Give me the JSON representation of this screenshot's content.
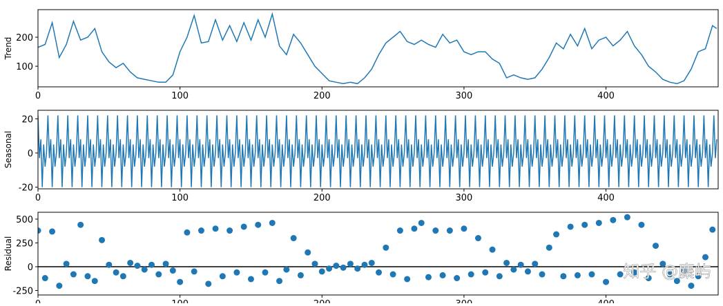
{
  "chart_data": [
    {
      "type": "line",
      "ylabel": "Trend",
      "color": "#1f77b4",
      "x": [
        0,
        5,
        10,
        15,
        20,
        25,
        30,
        35,
        40,
        45,
        50,
        55,
        60,
        65,
        70,
        75,
        80,
        85,
        90,
        95,
        100,
        105,
        110,
        115,
        120,
        125,
        130,
        135,
        140,
        145,
        150,
        155,
        160,
        165,
        170,
        175,
        180,
        185,
        190,
        195,
        200,
        205,
        210,
        215,
        220,
        225,
        230,
        235,
        240,
        245,
        250,
        255,
        260,
        265,
        270,
        275,
        280,
        285,
        290,
        295,
        300,
        305,
        310,
        315,
        320,
        325,
        330,
        335,
        340,
        345,
        350,
        355,
        360,
        365,
        370,
        375,
        380,
        385,
        390,
        395,
        400,
        405,
        410,
        415,
        420,
        425,
        430,
        435,
        440,
        445,
        450,
        455,
        460,
        465,
        470,
        475,
        478
      ],
      "values": [
        165,
        175,
        250,
        130,
        175,
        255,
        190,
        200,
        230,
        150,
        115,
        95,
        110,
        80,
        60,
        55,
        50,
        45,
        45,
        70,
        150,
        200,
        275,
        180,
        185,
        260,
        190,
        240,
        185,
        250,
        190,
        260,
        200,
        280,
        170,
        140,
        210,
        180,
        140,
        100,
        75,
        50,
        45,
        40,
        45,
        40,
        60,
        90,
        140,
        180,
        200,
        220,
        185,
        175,
        190,
        175,
        165,
        210,
        180,
        190,
        150,
        140,
        150,
        150,
        125,
        110,
        60,
        70,
        60,
        55,
        60,
        90,
        130,
        180,
        160,
        210,
        170,
        230,
        160,
        190,
        200,
        170,
        190,
        220,
        170,
        140,
        100,
        80,
        55,
        45,
        40,
        50,
        90,
        150,
        160,
        240,
        230
      ],
      "xlim": [
        0,
        479
      ],
      "xticks": [
        0,
        100,
        200,
        300,
        400
      ],
      "ylim": [
        29,
        295
      ],
      "yticks": [
        100,
        200
      ]
    },
    {
      "type": "line",
      "ylabel": "Seasonal",
      "color": "#1f77b4",
      "values": [
        22,
        -3,
        8,
        -20,
        5,
        -8,
        0,
        22,
        -3,
        8,
        -20,
        5,
        -8,
        0,
        22,
        -3,
        8,
        -20,
        5,
        -8,
        0,
        22,
        -3,
        8,
        -20,
        5,
        -8,
        0,
        22,
        -3,
        8,
        -20,
        5,
        -8,
        0,
        22,
        -3,
        8,
        -20,
        5,
        -8,
        0,
        22,
        -3,
        8,
        -20,
        5,
        -8,
        0,
        22,
        -3,
        8,
        -20,
        5,
        -8,
        0,
        22,
        -3,
        8,
        -20,
        5,
        -8,
        0,
        22,
        -3,
        8,
        -20,
        5,
        -8,
        0,
        22,
        -3,
        8,
        -20,
        5,
        -8,
        0,
        22,
        -3,
        8,
        -20,
        5,
        -8,
        0,
        22,
        -3,
        8,
        -20,
        5,
        -8,
        0,
        22,
        -3,
        8,
        -20,
        5,
        -8,
        0,
        22,
        -3,
        8,
        -20,
        5,
        -8,
        0,
        22,
        -3,
        8,
        -20,
        5,
        -8,
        0,
        22,
        -3,
        8,
        -20,
        5,
        -8,
        0,
        22,
        -3,
        8,
        -20,
        5,
        -8,
        0,
        22,
        -3,
        8,
        -20,
        5,
        -8,
        0,
        22,
        -3,
        8,
        -20,
        5,
        -8,
        0,
        22,
        -3,
        8,
        -20,
        5,
        -8,
        0,
        22,
        -3,
        8,
        -20,
        5,
        -8,
        0,
        22,
        -3,
        8,
        -20,
        5,
        -8,
        0,
        22,
        -3,
        8,
        -20,
        5,
        -8,
        0,
        22,
        -3,
        8,
        -20,
        5,
        -8,
        0,
        22,
        -3,
        8,
        -20,
        5,
        -8,
        0,
        22,
        -3,
        8,
        -20,
        5,
        -8,
        0,
        22,
        -3,
        8,
        -20,
        5,
        -8,
        0,
        22,
        -3,
        8,
        -20,
        5,
        -8,
        0,
        22,
        -3,
        8,
        -20,
        5,
        -8,
        0,
        22,
        -3,
        8,
        -20,
        5,
        -8,
        0,
        22,
        -3,
        8,
        -20,
        5,
        -8,
        0,
        22,
        -3,
        8,
        -20,
        5,
        -8,
        0,
        22,
        -3,
        8,
        -20,
        5,
        -8,
        0,
        22,
        -3,
        8,
        -20,
        5,
        -8,
        0,
        22,
        -3,
        8,
        -20,
        5,
        -8,
        0,
        22,
        -3,
        8,
        -20,
        5,
        -8,
        0,
        22,
        -3,
        8,
        -20,
        5,
        -8,
        0,
        22,
        -3,
        8,
        -20,
        5,
        -8,
        0,
        22,
        -3,
        8,
        -20,
        5,
        -8,
        0,
        22,
        -3,
        8,
        -20,
        5,
        -8,
        0,
        22,
        -3,
        8,
        -20,
        5,
        -8,
        0,
        22,
        -3,
        8,
        -20,
        5,
        -8,
        0,
        22,
        -3,
        8,
        -20,
        5,
        -8,
        0,
        22,
        -3,
        8,
        -20,
        5,
        -8,
        0,
        22,
        -3,
        8,
        -20,
        5,
        -8,
        0,
        22,
        -3,
        8,
        -20,
        5,
        -8,
        0,
        22,
        -3,
        8,
        -20,
        5,
        -8,
        0,
        22,
        -3,
        8,
        -20,
        5,
        -8,
        0,
        22,
        -3,
        8,
        -20,
        5,
        -8,
        0,
        22,
        -3,
        8,
        -20,
        5,
        -8,
        0,
        22,
        -3,
        8,
        -20,
        5,
        -8,
        0,
        22,
        -3,
        8,
        -20,
        5,
        -8,
        0,
        22,
        -3,
        8,
        -20,
        5,
        -8,
        0,
        22,
        -3,
        8,
        -20,
        5,
        -8,
        0,
        22,
        -3,
        8,
        -20,
        5,
        -8,
        0,
        22,
        -3,
        8,
        -20,
        5,
        -8,
        0,
        22,
        -3,
        8,
        -20,
        5,
        -8,
        0,
        22,
        -3,
        8,
        -20,
        5,
        -8,
        0,
        22,
        -3,
        8,
        -20,
        5,
        -8,
        0,
        22,
        -3,
        8,
        -20,
        5,
        -8,
        0,
        22,
        -3,
        8,
        -20,
        5,
        -8,
        0,
        22,
        -3,
        8,
        -20,
        5,
        -8,
        0,
        22,
        -3,
        8,
        -20,
        5,
        -8,
        0,
        22,
        -3,
        8,
        -20,
        5,
        -8,
        0,
        22,
        -3,
        8,
        -20,
        5,
        -8,
        0,
        22,
        -3,
        8,
        -20,
        5,
        -8,
        0,
        22,
        -3,
        8,
        -20,
        5,
        -8,
        0,
        22,
        -3,
        8
      ],
      "xlim": [
        0,
        479
      ],
      "xticks": [
        0,
        100,
        200,
        300,
        400
      ],
      "ylim": [
        -21,
        25
      ],
      "yticks": [
        -20,
        0,
        20
      ]
    },
    {
      "type": "scatter",
      "ylabel": "Residual",
      "color": "#1f77b4",
      "hline": 0,
      "x": [
        0,
        5,
        10,
        15,
        20,
        25,
        30,
        35,
        40,
        45,
        50,
        55,
        60,
        65,
        70,
        75,
        80,
        85,
        90,
        95,
        100,
        105,
        110,
        115,
        120,
        125,
        130,
        135,
        140,
        145,
        150,
        155,
        160,
        165,
        170,
        175,
        180,
        185,
        190,
        195,
        200,
        205,
        210,
        215,
        220,
        225,
        230,
        235,
        240,
        245,
        250,
        255,
        260,
        265,
        270,
        275,
        280,
        285,
        290,
        295,
        300,
        305,
        310,
        315,
        320,
        325,
        330,
        335,
        340,
        345,
        350,
        355,
        360,
        365,
        370,
        375,
        380,
        385,
        390,
        395,
        400,
        405,
        410,
        415,
        420,
        425,
        430,
        435,
        440,
        445,
        450,
        455,
        460,
        465,
        470,
        475
      ],
      "values": [
        380,
        -120,
        370,
        -200,
        30,
        -80,
        440,
        -100,
        -150,
        280,
        20,
        -60,
        -100,
        40,
        10,
        -30,
        20,
        -80,
        30,
        -40,
        -160,
        360,
        -50,
        380,
        -180,
        400,
        -100,
        380,
        -60,
        420,
        -130,
        440,
        -60,
        460,
        -150,
        -30,
        300,
        -90,
        150,
        30,
        -50,
        -20,
        10,
        -10,
        30,
        -20,
        20,
        40,
        -60,
        200,
        -80,
        380,
        -130,
        400,
        460,
        -110,
        380,
        -90,
        380,
        -120,
        400,
        -80,
        300,
        -60,
        180,
        -100,
        40,
        -30,
        20,
        -50,
        30,
        -80,
        200,
        340,
        -100,
        420,
        -90,
        440,
        -80,
        460,
        -160,
        490,
        -80,
        520,
        -60,
        440,
        -120,
        220,
        30,
        -80,
        -150,
        -40,
        -200,
        -100,
        100,
        390
      ],
      "xlim": [
        0,
        479
      ],
      "xticks": [
        0,
        100,
        200,
        300,
        400
      ],
      "ylim": [
        -297,
        572
      ],
      "yticks": [
        -250,
        0,
        250,
        500
      ]
    }
  ],
  "watermark": "知乎 @麋屿"
}
